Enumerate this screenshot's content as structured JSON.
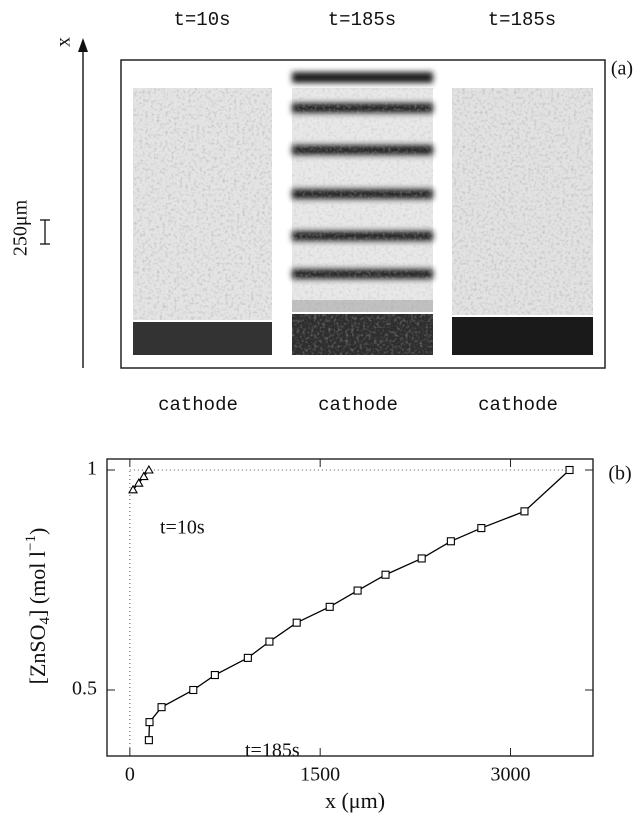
{
  "panel_a": {
    "label": "(a)",
    "axis_label": "x",
    "scale_label": "250μm",
    "columns": [
      {
        "time": "t=10s",
        "caption": "cathode"
      },
      {
        "time": "t=185s",
        "caption": "cathode"
      },
      {
        "time": "t=185s",
        "caption": "cathode"
      }
    ]
  },
  "chart_data": {
    "type": "line",
    "panel_label": "(b)",
    "xlabel": "x (μm)",
    "ylabel": [
      "[ZnSO",
      "4",
      "] (mol l",
      "−1",
      ")"
    ],
    "xlim": [
      -180,
      3650
    ],
    "ylim": [
      0.35,
      1.025
    ],
    "xticks": [
      0,
      1500,
      3000
    ],
    "yticks": [
      0.5,
      1
    ],
    "grid": false,
    "guides": {
      "x": 0,
      "y": 1
    },
    "series": [
      {
        "name": "t=10s",
        "color": "#000",
        "marker": "triangle",
        "x": [
          25,
          70,
          110,
          150
        ],
        "values": [
          0.955,
          0.97,
          0.985,
          1.0
        ]
      },
      {
        "name": "t=185s",
        "color": "#000",
        "marker": "square",
        "x": [
          150,
          155,
          250,
          500,
          670,
          930,
          1100,
          1315,
          1575,
          1795,
          2015,
          2300,
          2530,
          2770,
          3110,
          3465
        ],
        "values": [
          0.386,
          0.427,
          0.461,
          0.5,
          0.534,
          0.573,
          0.61,
          0.653,
          0.689,
          0.726,
          0.762,
          0.799,
          0.838,
          0.868,
          0.906,
          1.0
        ]
      }
    ]
  }
}
